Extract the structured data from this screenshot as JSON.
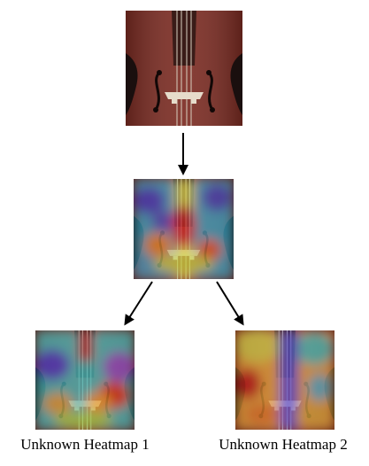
{
  "diagram": {
    "source_image_icon": "cello-photo",
    "middle_heatmap_icon": "attention-heatmap",
    "captions": {
      "left": "Unknown Heatmap 1",
      "right": "Unknown Heatmap 2"
    },
    "colors": {
      "arrow": "#000000",
      "background": "#ffffff"
    }
  }
}
